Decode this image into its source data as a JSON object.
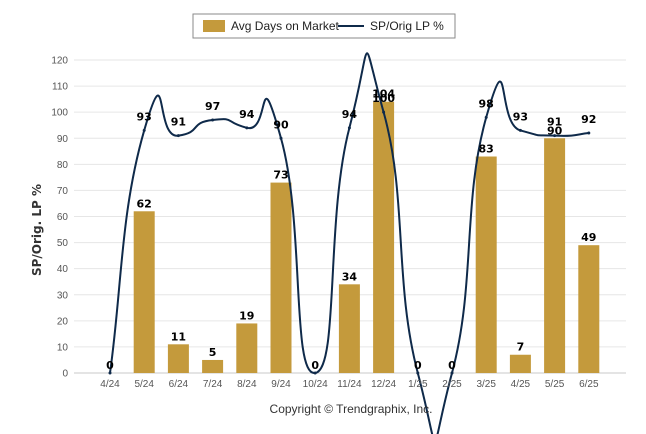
{
  "chart_data": {
    "type": "bar",
    "categories": [
      "4/24",
      "5/24",
      "6/24",
      "7/24",
      "8/24",
      "9/24",
      "10/24",
      "11/24",
      "12/24",
      "1/25",
      "2/25",
      "3/25",
      "4/25",
      "5/25",
      "6/25"
    ],
    "series": [
      {
        "name": "Avg Days on Market",
        "type": "bar",
        "color": "#c49a3c",
        "values": [
          0,
          62,
          11,
          5,
          19,
          73,
          0,
          34,
          104,
          0,
          0,
          83,
          7,
          90,
          49
        ]
      },
      {
        "name": "SP/Orig LP %",
        "type": "line",
        "color": "#0f2a4a",
        "values": [
          0,
          93,
          91,
          97,
          94,
          90,
          0,
          94,
          100,
          0,
          0,
          98,
          93,
          91,
          92
        ]
      }
    ],
    "ylabel": "SP/Orig. LP %",
    "ylim": [
      0,
      120
    ],
    "yticks": [
      0,
      10,
      20,
      30,
      40,
      50,
      60,
      70,
      80,
      90,
      100,
      110,
      120
    ],
    "grid": true,
    "legend": "top-center"
  },
  "footer": {
    "copyright": "Copyright © Trendgraphix, Inc."
  }
}
